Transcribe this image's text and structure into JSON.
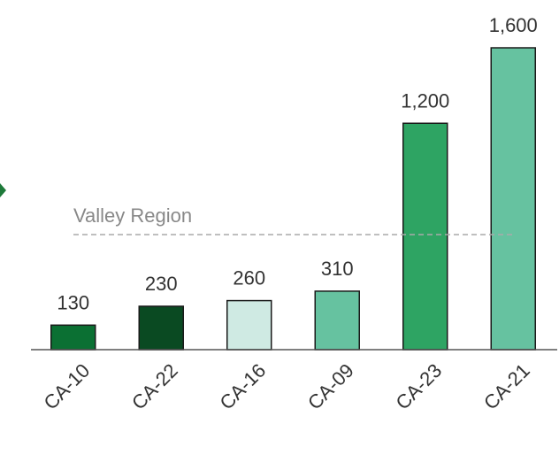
{
  "chart_data": {
    "type": "bar",
    "categories": [
      "CA-10",
      "CA-22",
      "CA-16",
      "CA-09",
      "CA-23",
      "CA-21"
    ],
    "values": [
      130,
      230,
      260,
      310,
      1200,
      1600
    ],
    "value_labels": [
      "130",
      "230",
      "260",
      "310",
      "1,200",
      "1,600"
    ],
    "colors": [
      "#0b7033",
      "#0a4a22",
      "#cfeae3",
      "#66c2a0",
      "#2ea463",
      "#66c2a0"
    ],
    "ylim": [
      0,
      1600
    ],
    "reference_line": {
      "label": "Valley Region",
      "value": 610
    }
  }
}
